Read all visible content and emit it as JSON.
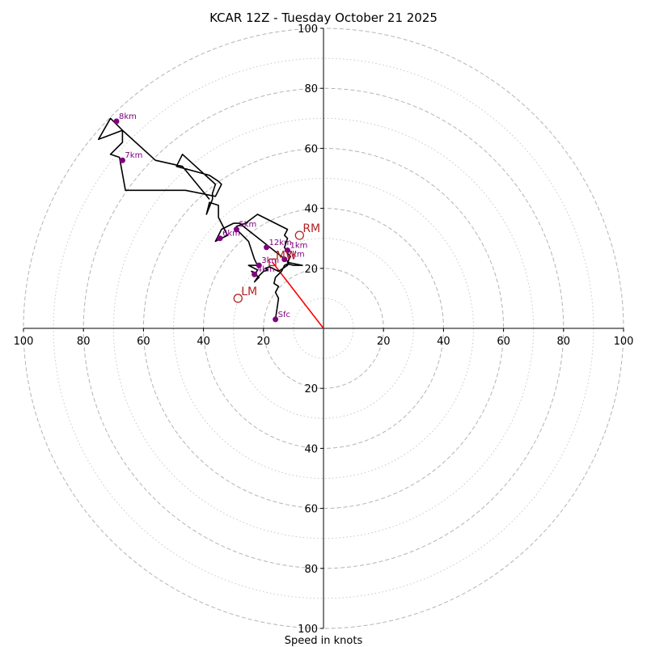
{
  "chart_data": {
    "type": "scatter",
    "subtype": "hodograph",
    "title": "KCAR 12Z - Tuesday October 21 2025",
    "xlabel": "Speed in knots",
    "units": "knots",
    "xlim": [
      -100,
      100
    ],
    "ylim": [
      -100,
      100
    ],
    "rings_major": [
      20,
      40,
      60,
      80,
      100
    ],
    "rings_minor": [
      10,
      30,
      50,
      70,
      90
    ],
    "tick_labels": [
      "100",
      "80",
      "60",
      "40",
      "20"
    ],
    "trace_color": "#000000",
    "label_color": "#800080",
    "motion_color": "#b22222",
    "shear_color": "#ff0000",
    "trace": [
      [
        -16,
        3
      ],
      [
        -15,
        10
      ],
      [
        -16,
        12
      ],
      [
        -15,
        14
      ],
      [
        -16.5,
        15
      ],
      [
        -16,
        17
      ],
      [
        -14,
        19
      ],
      [
        -13,
        21
      ],
      [
        -12,
        21.5
      ],
      [
        -10,
        21
      ],
      [
        -7,
        21
      ],
      [
        -12,
        22
      ],
      [
        -11,
        24
      ],
      [
        -12,
        25
      ],
      [
        -13,
        27
      ],
      [
        -12,
        30
      ],
      [
        -13,
        31
      ],
      [
        -12,
        33
      ],
      [
        -22,
        38
      ],
      [
        -26,
        35
      ],
      [
        -29,
        34
      ],
      [
        -29,
        33
      ],
      [
        -25,
        29
      ],
      [
        -23,
        23
      ],
      [
        -22,
        21
      ],
      [
        -25,
        21
      ],
      [
        -22,
        19.5
      ],
      [
        -22.5,
        18.5
      ],
      [
        -24,
        19
      ],
      [
        -21.5,
        17
      ],
      [
        -23,
        15.5
      ],
      [
        -22,
        17
      ],
      [
        -20,
        19
      ],
      [
        -18.5,
        19.5
      ],
      [
        -19.5,
        20
      ],
      [
        -18,
        20.5
      ],
      [
        -15,
        19
      ],
      [
        -12,
        21
      ],
      [
        -11.5,
        22
      ],
      [
        -28,
        35
      ],
      [
        -30,
        35
      ],
      [
        -34,
        33
      ],
      [
        -36,
        29
      ],
      [
        -32,
        31
      ],
      [
        -34,
        35
      ],
      [
        -35,
        37
      ],
      [
        -35,
        41
      ],
      [
        -38,
        42
      ],
      [
        -39,
        38
      ],
      [
        -37,
        43
      ],
      [
        -37,
        45
      ],
      [
        -36,
        48
      ],
      [
        -47,
        58
      ],
      [
        -49,
        54
      ],
      [
        -38,
        51
      ],
      [
        -35,
        49
      ],
      [
        -34,
        48
      ],
      [
        -36,
        44
      ],
      [
        -46,
        46
      ],
      [
        -66,
        46
      ],
      [
        -68,
        57
      ],
      [
        -71,
        58
      ],
      [
        -67,
        62
      ],
      [
        -67,
        66
      ],
      [
        -71,
        70
      ],
      [
        -75,
        63
      ],
      [
        -67,
        66
      ],
      [
        -56,
        56
      ],
      [
        -47,
        54
      ],
      [
        -38,
        43
      ]
    ],
    "height_markers": [
      {
        "label": "Sfc",
        "u": -16,
        "v": 3
      },
      {
        "label": "1km",
        "u": -12,
        "v": 26
      },
      {
        "label": "2km",
        "u": -13,
        "v": 23
      },
      {
        "label": "3km",
        "u": -21.5,
        "v": 21
      },
      {
        "label": "4km",
        "u": -23,
        "v": 18
      },
      {
        "label": "5km",
        "u": -29,
        "v": 33
      },
      {
        "label": "6km",
        "u": -34.5,
        "v": 30
      },
      {
        "label": "7km",
        "u": -67,
        "v": 56
      },
      {
        "label": "8km",
        "u": -69,
        "v": 69
      },
      {
        "label": "12km",
        "u": -19,
        "v": 27
      }
    ],
    "storm_motion": [
      {
        "label": "RM",
        "u": -8,
        "v": 31
      },
      {
        "label": "LM",
        "u": -28.5,
        "v": 10
      },
      {
        "label": "MW",
        "u": -17,
        "v": 22
      }
    ],
    "shear_vector": {
      "from": [
        0,
        0
      ],
      "to": [
        -17,
        22
      ]
    }
  }
}
